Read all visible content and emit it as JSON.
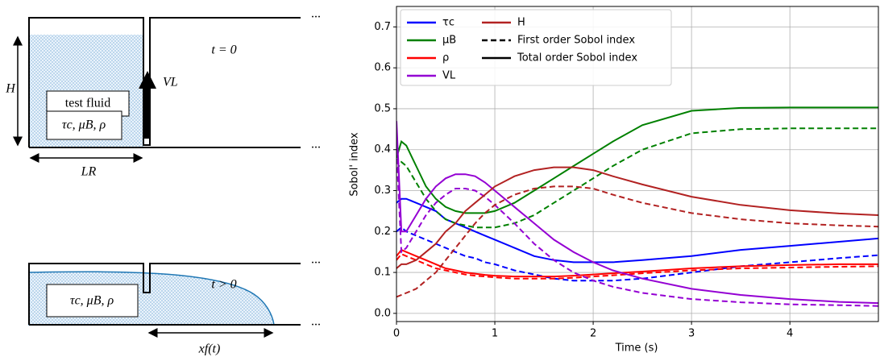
{
  "diagram": {
    "top_panel": {
      "time_label": "t = 0",
      "fluid_label": "test fluid",
      "properties_label": "τc, μB, ρ",
      "height_label": "H",
      "velocity_label": "VL",
      "length_label": "LR",
      "ellipsis": "..."
    },
    "bottom_panel": {
      "time_label": "t > 0",
      "properties_label": "τc, μB, ρ",
      "front_label": "xf(t)",
      "ellipsis": "..."
    }
  },
  "chart_data": {
    "type": "line",
    "xlabel": "Time (s)",
    "ylabel": "Sobol' index",
    "x": [
      0,
      0.05,
      0.1,
      0.2,
      0.3,
      0.4,
      0.5,
      0.6,
      0.7,
      0.8,
      0.9,
      1.0,
      1.2,
      1.4,
      1.6,
      1.8,
      2.0,
      2.2,
      2.5,
      3.0,
      3.5,
      4.0,
      4.5,
      4.9
    ],
    "xlim": [
      0,
      4.9
    ],
    "xticks": [
      0,
      1,
      2,
      3,
      4
    ],
    "ylim": [
      -0.02,
      0.75
    ],
    "yticks": [
      {
        "value": 0,
        "label": "0.0"
      },
      0.1,
      0.2,
      0.3,
      0.4,
      0.5,
      0.6,
      0.7
    ],
    "grid": true,
    "legend": "upper left",
    "line_styles": [
      {
        "name": "First order Sobol index",
        "dash": "dashed"
      },
      {
        "name": "Total order Sobol index",
        "dash": "solid"
      }
    ],
    "series": [
      {
        "name": "τc",
        "color": "#0000ff",
        "values": [
          0.27,
          0.28,
          0.28,
          0.27,
          0.26,
          0.25,
          0.23,
          0.22,
          0.21,
          0.2,
          0.19,
          0.18,
          0.16,
          0.14,
          0.13,
          0.125,
          0.125,
          0.125,
          0.13,
          0.14,
          0.155,
          0.165,
          0.175,
          0.183
        ],
        "first_order_values": [
          0.2,
          0.21,
          0.2,
          0.19,
          0.18,
          0.17,
          0.16,
          0.15,
          0.14,
          0.135,
          0.125,
          0.12,
          0.105,
          0.095,
          0.085,
          0.08,
          0.08,
          0.08,
          0.085,
          0.1,
          0.115,
          0.125,
          0.135,
          0.142
        ]
      },
      {
        "name": "μB",
        "color": "#008000",
        "values": [
          0.38,
          0.42,
          0.41,
          0.36,
          0.31,
          0.28,
          0.26,
          0.25,
          0.245,
          0.245,
          0.245,
          0.25,
          0.27,
          0.3,
          0.33,
          0.36,
          0.39,
          0.42,
          0.46,
          0.495,
          0.502,
          0.503,
          0.503,
          0.503
        ],
        "first_order_values": [
          0.35,
          0.37,
          0.36,
          0.32,
          0.28,
          0.25,
          0.23,
          0.22,
          0.215,
          0.21,
          0.21,
          0.21,
          0.22,
          0.24,
          0.27,
          0.3,
          0.33,
          0.36,
          0.4,
          0.44,
          0.45,
          0.452,
          0.452,
          0.452
        ]
      },
      {
        "name": "ρ",
        "color": "#ff0000",
        "values": [
          0.14,
          0.155,
          0.15,
          0.14,
          0.13,
          0.12,
          0.11,
          0.105,
          0.1,
          0.097,
          0.094,
          0.092,
          0.09,
          0.09,
          0.09,
          0.092,
          0.095,
          0.098,
          0.102,
          0.11,
          0.115,
          0.118,
          0.12,
          0.12
        ],
        "first_order_values": [
          0.13,
          0.145,
          0.14,
          0.13,
          0.12,
          0.11,
          0.105,
          0.1,
          0.095,
          0.092,
          0.09,
          0.088,
          0.085,
          0.085,
          0.085,
          0.087,
          0.09,
          0.093,
          0.098,
          0.105,
          0.11,
          0.112,
          0.114,
          0.115
        ]
      },
      {
        "name": "VL",
        "color": "#9400d3",
        "values": [
          0.47,
          0.2,
          0.2,
          0.24,
          0.28,
          0.31,
          0.33,
          0.34,
          0.34,
          0.335,
          0.32,
          0.3,
          0.26,
          0.22,
          0.18,
          0.15,
          0.125,
          0.105,
          0.085,
          0.06,
          0.045,
          0.035,
          0.028,
          0.025
        ],
        "first_order_values": [
          0.4,
          0.15,
          0.16,
          0.2,
          0.24,
          0.27,
          0.29,
          0.305,
          0.305,
          0.3,
          0.285,
          0.265,
          0.22,
          0.17,
          0.13,
          0.1,
          0.08,
          0.065,
          0.05,
          0.035,
          0.027,
          0.022,
          0.02,
          0.018
        ]
      },
      {
        "name": "H",
        "color": "#b22222",
        "values": [
          0.11,
          0.12,
          0.12,
          0.13,
          0.15,
          0.17,
          0.2,
          0.22,
          0.25,
          0.27,
          0.29,
          0.31,
          0.335,
          0.35,
          0.357,
          0.357,
          0.35,
          0.335,
          0.315,
          0.285,
          0.265,
          0.252,
          0.244,
          0.24
        ],
        "first_order_values": [
          0.04,
          0.045,
          0.05,
          0.06,
          0.08,
          0.1,
          0.13,
          0.16,
          0.19,
          0.22,
          0.245,
          0.265,
          0.29,
          0.305,
          0.31,
          0.31,
          0.305,
          0.29,
          0.27,
          0.245,
          0.23,
          0.22,
          0.215,
          0.212
        ]
      }
    ]
  }
}
